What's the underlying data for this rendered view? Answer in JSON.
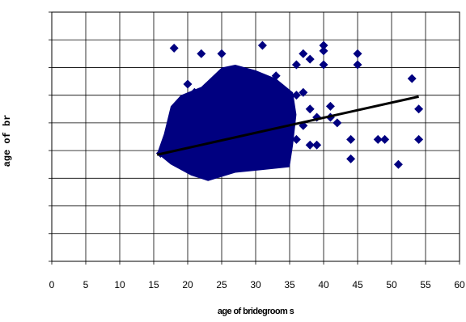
{
  "chart_data": {
    "type": "scatter",
    "title": "",
    "xlabel": "age of bridegroom s",
    "ylabel": "age of br",
    "xlim": [
      0,
      60
    ],
    "xticks": [
      0,
      5,
      10,
      15,
      20,
      25,
      30,
      35,
      40,
      45,
      50,
      55,
      60
    ],
    "ylim": [
      0,
      9
    ],
    "grid": true,
    "legend": "none",
    "marker": "diamond",
    "point_color": "#000080",
    "trendline_color": "#000000",
    "trendline": {
      "x": [
        15.5,
        54
      ],
      "y": [
        3.85,
        5.95
      ]
    },
    "series": [
      {
        "x": [
          18,
          22,
          25,
          31,
          40,
          40,
          45,
          37,
          38,
          36,
          40,
          53,
          45,
          44,
          48,
          49,
          54,
          51,
          44,
          54,
          41,
          41,
          42,
          16,
          17,
          19,
          20,
          21,
          22,
          23,
          24,
          25,
          26,
          27,
          28,
          29,
          30,
          31,
          32,
          33,
          34,
          35,
          36,
          37,
          38,
          39,
          35,
          34,
          33,
          32,
          31,
          30,
          29,
          28,
          27,
          26,
          25,
          24,
          23,
          22,
          21,
          20,
          19,
          18,
          18,
          19,
          20,
          21,
          22,
          23,
          24,
          25,
          26,
          27,
          28,
          29,
          30,
          31,
          32,
          33,
          34,
          35,
          21,
          22,
          23,
          24,
          25,
          26,
          27,
          28,
          29,
          30,
          31,
          32,
          33,
          34,
          22,
          24,
          26,
          28,
          30,
          32,
          25,
          27,
          29,
          31,
          33,
          20,
          36,
          38,
          39,
          37
        ],
        "y": [
          7.7,
          7.5,
          7.5,
          7.8,
          7.8,
          7.6,
          7.5,
          7.5,
          7.3,
          7.1,
          7.1,
          6.6,
          7.1,
          4.4,
          4.4,
          4.4,
          4.4,
          3.5,
          3.7,
          5.5,
          5.6,
          5.2,
          5.0,
          3.9,
          4.0,
          4.3,
          4.5,
          4.7,
          4.9,
          5.0,
          5.1,
          5.2,
          5.3,
          5.4,
          5.5,
          5.6,
          5.7,
          5.8,
          5.8,
          5.9,
          6.0,
          6.0,
          6.0,
          6.1,
          5.5,
          5.2,
          4.8,
          4.6,
          4.5,
          4.4,
          4.3,
          4.2,
          4.1,
          4.0,
          3.9,
          3.8,
          3.7,
          3.6,
          3.6,
          3.5,
          3.5,
          3.6,
          3.7,
          3.8,
          5.3,
          5.6,
          5.9,
          6.1,
          6.0,
          6.0,
          6.2,
          6.5,
          6.6,
          6.4,
          6.4,
          6.3,
          6.3,
          6.3,
          6.5,
          6.3,
          6.1,
          5.8,
          3.3,
          3.3,
          3.3,
          3.3,
          3.4,
          3.4,
          3.5,
          3.5,
          3.5,
          3.6,
          3.6,
          3.6,
          3.7,
          3.8,
          3.6,
          3.8,
          4.0,
          4.2,
          4.4,
          4.6,
          6.8,
          6.9,
          6.6,
          6.4,
          6.7,
          6.4,
          4.4,
          4.2,
          4.2,
          4.9
        ]
      }
    ]
  }
}
